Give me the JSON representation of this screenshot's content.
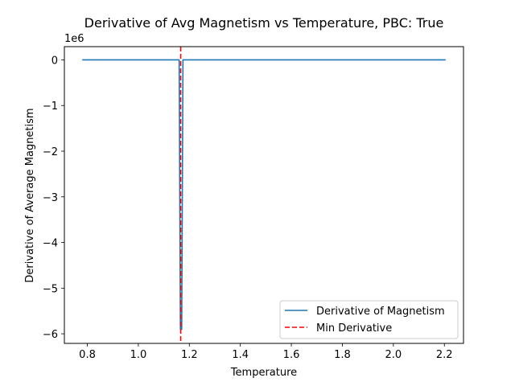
{
  "chart_data": {
    "type": "line",
    "title": "Derivative of Avg Magnetism vs Temperature, PBC: True",
    "xlabel": "Temperature",
    "ylabel": "Derivative of Average Magnetism",
    "y_offset_text": "1e6",
    "y_multiplier": 1000000,
    "xlim": [
      0.71,
      2.275
    ],
    "ylim": [
      -6210000,
      290000
    ],
    "xticks": [
      0.8,
      1.0,
      1.2,
      1.4,
      1.6,
      1.8,
      2.0,
      2.2
    ],
    "xtick_labels": [
      "0.8",
      "1.0",
      "1.2",
      "1.4",
      "1.6",
      "1.8",
      "2.0",
      "2.2"
    ],
    "yticks": [
      0,
      -1000000,
      -2000000,
      -3000000,
      -4000000,
      -5000000,
      -6000000
    ],
    "ytick_labels": [
      "0",
      "−1",
      "−2",
      "−3",
      "−4",
      "−5",
      "−6"
    ],
    "grid": false,
    "legend_location": "lower right",
    "series": [
      {
        "name": "Derivative of Magnetism",
        "color": "#1f77b4",
        "style": "solid",
        "x": [
          0.78,
          1.16,
          1.165,
          1.17,
          1.175,
          2.205
        ],
        "y": [
          0,
          0,
          -5900000,
          -5900000,
          0,
          0
        ]
      },
      {
        "name": "Min Derivative",
        "color": "#ff0000",
        "style": "dashed",
        "type": "vline",
        "x": 1.166
      }
    ]
  }
}
